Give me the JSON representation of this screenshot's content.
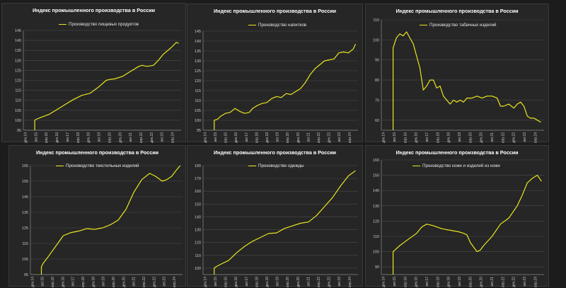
{
  "colors": {
    "background": "#1c1c1c",
    "panel": "#262626",
    "grid": "#4a4a4a",
    "line": "#e8e61f",
    "text": "#c8c8c8"
  },
  "chart_data": [
    {
      "type": "line",
      "title": "Индекс промышленного производства в России",
      "series": [
        {
          "name": "Производство пищевых продуктов",
          "x": [
            2015.6,
            2015.7,
            2016,
            2016.5,
            2017,
            2017.5,
            2018,
            2018.5,
            2019,
            2019.5,
            2020,
            2020.25,
            2020.5,
            2021,
            2021.5,
            2022,
            2022.2,
            2022.5,
            2022.9,
            2023.2,
            2023.5,
            2024,
            2024.3,
            2024.45
          ],
          "y": [
            100,
            100.5,
            101.5,
            103,
            105.5,
            108,
            110.5,
            112.5,
            113.5,
            116.5,
            120,
            120.5,
            120.7,
            122,
            124.5,
            127,
            127.5,
            127,
            127.5,
            130,
            133,
            136.5,
            139,
            138.5
          ]
        }
      ],
      "ylim": [
        95,
        145
      ],
      "yticks": [
        "95",
        "100",
        "105",
        "110",
        "115",
        "120",
        "125",
        "130",
        "135",
        "140",
        "145"
      ],
      "xlim": [
        2014.9,
        2024.6
      ],
      "xticks": [
        "дек.14",
        "авг.15",
        "апр.16",
        "дек.16",
        "авг.17",
        "апр.18",
        "дек.18",
        "авг.19",
        "апр.20",
        "дек.20",
        "авг.21",
        "апр.22",
        "дек.22",
        "авг.23",
        "апр.24"
      ],
      "legend": "top"
    },
    {
      "type": "line",
      "title": "Индекс промышленного производства в России",
      "series": [
        {
          "name": "Производство напитков",
          "x": [
            2015.6,
            2015.8,
            2016,
            2016.3,
            2016.6,
            2016.9,
            2017.2,
            2017.5,
            2017.8,
            2018,
            2018.3,
            2018.6,
            2018.9,
            2019.2,
            2019.5,
            2019.8,
            2020.1,
            2020.4,
            2020.7,
            2021,
            2021.3,
            2021.6,
            2021.9,
            2022.2,
            2022.5,
            2022.8,
            2023.1,
            2023.4,
            2023.7,
            2024,
            2024.3,
            2024.45
          ],
          "y": [
            100,
            100.5,
            102,
            103.5,
            104,
            106,
            104.5,
            103.5,
            104,
            106,
            107.5,
            108.5,
            109,
            111,
            112,
            111.5,
            113.5,
            113,
            114.5,
            116,
            119,
            123,
            126,
            128,
            130,
            130.5,
            131,
            134,
            134.5,
            134,
            136,
            138.5
          ]
        }
      ],
      "ylim": [
        95,
        145
      ],
      "yticks": [
        "95",
        "100",
        "105",
        "110",
        "115",
        "120",
        "125",
        "130",
        "135",
        "140",
        "145"
      ],
      "xlim": [
        2014.9,
        2024.6
      ],
      "xticks": [
        "дек.14",
        "авг.15",
        "апр.16",
        "дек.16",
        "авг.17",
        "апр.18",
        "дек.18",
        "авг.19",
        "апр.20",
        "дек.20",
        "авг.21",
        "апр.22",
        "дек.22",
        "авг.23",
        "апр.24"
      ],
      "legend": "top"
    },
    {
      "type": "line",
      "title": "Индекс промышленного производства в России",
      "series": [
        {
          "name": "Производство табачных изделий",
          "x": [
            2015.6,
            2015.8,
            2016,
            2016.2,
            2016.4,
            2016.6,
            2016.8,
            2017,
            2017.2,
            2017.4,
            2017.6,
            2017.8,
            2018,
            2018.2,
            2018.4,
            2018.6,
            2018.8,
            2019,
            2019.2,
            2019.4,
            2019.6,
            2019.8,
            2020,
            2020.3,
            2020.6,
            2020.9,
            2021.2,
            2021.5,
            2021.8,
            2022,
            2022.2,
            2022.5,
            2022.8,
            2023,
            2023.2,
            2023.4,
            2023.6,
            2023.8,
            2024,
            2024.2,
            2024.4
          ],
          "y": [
            96,
            101,
            103,
            102,
            104,
            101,
            98,
            92,
            86,
            75,
            77,
            80,
            80,
            76,
            77,
            72,
            70,
            68,
            70,
            69,
            70,
            69,
            71,
            71,
            72,
            71,
            72,
            72,
            71,
            67,
            67,
            68,
            66,
            68,
            69,
            67,
            62,
            61,
            61,
            60,
            59
          ]
        }
      ],
      "ylim": [
        55,
        110
      ],
      "yticks": [
        "50",
        "60",
        "70",
        "80",
        "90",
        "100",
        "110"
      ],
      "ytick_values": [
        50,
        60,
        70,
        80,
        90,
        100,
        110
      ],
      "xlim": [
        2014.9,
        2024.6
      ],
      "xticks": [
        "дек.14",
        "авг.15",
        "апр.16",
        "дек.16",
        "авг.17",
        "апр.18",
        "дек.18",
        "авг.19",
        "апр.20",
        "дек.20",
        "авг.21",
        "апр.22",
        "дек.22",
        "авг.23",
        "апр.24"
      ],
      "legend": "top-right"
    },
    {
      "type": "line",
      "title": "Индекс промышленного производства в России",
      "series": [
        {
          "name": "Производство текстильных изделий",
          "x": [
            2015.6,
            2015.7,
            2016,
            2016.5,
            2017,
            2017.5,
            2018,
            2018.5,
            2019,
            2019.5,
            2020,
            2020.5,
            2021,
            2021.5,
            2022,
            2022.5,
            2022.9,
            2023.3,
            2023.6,
            2023.9,
            2024.2,
            2024.45
          ],
          "y": [
            100,
            102,
            106,
            113,
            120,
            122,
            123,
            124.5,
            124,
            125,
            127,
            130,
            137,
            148,
            156,
            160,
            158,
            155,
            156,
            158,
            162,
            165
          ]
        }
      ],
      "ylim": [
        95,
        165
      ],
      "yticks": [
        "95",
        "105",
        "115",
        "125",
        "135",
        "145",
        "155",
        "165"
      ],
      "xlim": [
        2014.9,
        2024.6
      ],
      "xticks": [
        "дек.14",
        "авг.15",
        "апр.16",
        "дек.16",
        "авг.17",
        "апр.18",
        "дек.18",
        "авг.19",
        "апр.20",
        "дек.20",
        "авг.21",
        "апр.22",
        "дек.22",
        "авг.23",
        "апр.24"
      ],
      "legend": "top"
    },
    {
      "type": "line",
      "title": "Индекс промышленного производства в России",
      "series": [
        {
          "name": "Производство одежды",
          "x": [
            2015.6,
            2015.7,
            2016,
            2016.5,
            2017,
            2017.5,
            2018,
            2018.5,
            2019,
            2019.5,
            2020,
            2020.5,
            2021,
            2021.5,
            2022,
            2022.5,
            2023,
            2023.5,
            2024,
            2024.45
          ],
          "y": [
            100,
            101,
            103,
            106,
            112,
            117,
            121,
            124,
            127,
            127.5,
            131,
            133,
            135,
            136,
            141,
            148,
            155,
            164,
            172,
            176
          ]
        }
      ],
      "ylim": [
        95,
        180
      ],
      "yticks": [
        "100",
        "110",
        "120",
        "130",
        "140",
        "150",
        "160",
        "170",
        "180"
      ],
      "xlim": [
        2014.9,
        2024.6
      ],
      "xticks": [
        "дек.14",
        "авг.15",
        "апр.16",
        "дек.16",
        "авг.17",
        "апр.18",
        "дек.18",
        "авг.19",
        "апр.20",
        "дек.20",
        "авг.21",
        "апр.22",
        "дек.22",
        "авг.23",
        "апр.24"
      ],
      "legend": "top"
    },
    {
      "type": "line",
      "title": "Индекс промышленного производства в России",
      "series": [
        {
          "name": "Производство кожи и изделий из кожи",
          "x": [
            2015.6,
            2015.7,
            2016,
            2016.5,
            2017,
            2017.3,
            2017.6,
            2018,
            2018.5,
            2019,
            2019.5,
            2019.8,
            2020,
            2020.2,
            2020.4,
            2020.6,
            2020.8,
            2021,
            2021.5,
            2022,
            2022.5,
            2023,
            2023.3,
            2023.6,
            2023.9,
            2024.2,
            2024.45
          ],
          "y": [
            100,
            101,
            104,
            108,
            112,
            116,
            118,
            117,
            115,
            114,
            113,
            112,
            111,
            106,
            103,
            100,
            101,
            104,
            110,
            118,
            122,
            130,
            137,
            145,
            148,
            150,
            146
          ]
        }
      ],
      "ylim": [
        85,
        160
      ],
      "yticks": [
        "90",
        "100",
        "110",
        "120",
        "130",
        "140",
        "150",
        "160"
      ],
      "xlim": [
        2014.9,
        2024.6
      ],
      "xticks": [
        "дек.14",
        "авг.15",
        "апр.16",
        "дек.16",
        "авг.17",
        "апр.18",
        "дек.18",
        "авг.19",
        "апр.20",
        "дек.20",
        "авг.21",
        "апр.22",
        "дек.22",
        "авг.23",
        "апр.24"
      ],
      "legend": "top-right"
    }
  ]
}
